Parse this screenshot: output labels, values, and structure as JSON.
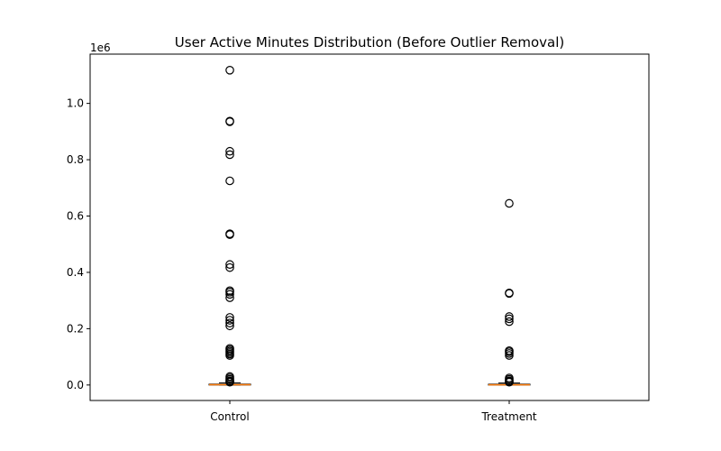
{
  "chart_data": {
    "type": "boxplot",
    "title": "User Active Minutes Distribution (Before Outlier Removal)",
    "xlabel": "",
    "ylabel": "",
    "y_scale_label": "1e6",
    "categories": [
      "Control",
      "Treatment"
    ],
    "ylim": [
      -55000,
      1175000
    ],
    "y_ticks": [
      0,
      200000,
      400000,
      600000,
      800000,
      1000000
    ],
    "y_tick_labels": [
      "0.0",
      "0.2",
      "0.4",
      "0.6",
      "0.8",
      "1.0"
    ],
    "grid": false,
    "series": [
      {
        "name": "",
        "box": {
          "q1": 0,
          "median": 900,
          "q3": 3200,
          "whisker_low": 0,
          "whisker_high": 8000
        },
        "fliers": [
          1118000,
          937000,
          935000,
          830000,
          818000,
          725000,
          537000,
          534000,
          428000,
          417000,
          335000,
          330000,
          322000,
          310000,
          240000,
          230000,
          220000,
          210000,
          130000,
          125000,
          120000,
          115000,
          110000,
          105000,
          30000,
          25000,
          20000,
          15000,
          12000,
          10000
        ]
      },
      {
        "name": "",
        "box": {
          "q1": 0,
          "median": 800,
          "q3": 3000,
          "whisker_low": 0,
          "whisker_high": 7000
        },
        "fliers": [
          645000,
          327000,
          325000,
          243000,
          235000,
          225000,
          122000,
          118000,
          112000,
          105000,
          25000,
          20000,
          15000,
          12000,
          10000
        ]
      }
    ],
    "colors": {
      "median": "#ff7f0e",
      "box": "#000000",
      "flier": "#000000"
    }
  }
}
